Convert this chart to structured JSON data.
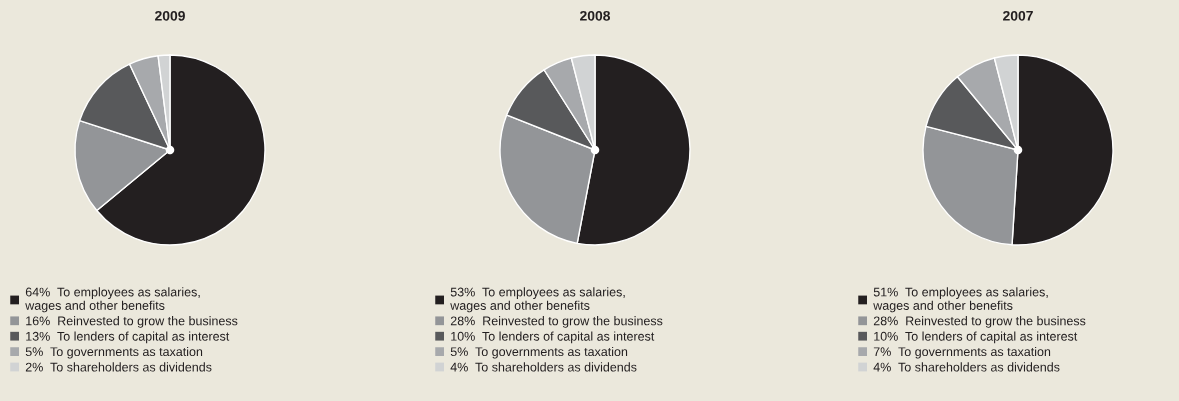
{
  "chart_data": [
    {
      "type": "pie",
      "title": "2009",
      "categories": [
        "To employees as salaries,\nwages and other benefits",
        "Reinvested to grow the business",
        "To lenders of capital as interest",
        "To governments as taxation",
        "To shareholders as dividends"
      ],
      "values": [
        64,
        16,
        13,
        5,
        2
      ],
      "value_labels": [
        "64%",
        "16%",
        "13%",
        "5%",
        "2%"
      ],
      "colors": [
        "#231f20",
        "#939598",
        "#58595b",
        "#a7a9ac",
        "#d1d3d4"
      ],
      "legend": "bottom"
    },
    {
      "type": "pie",
      "title": "2008",
      "categories": [
        "To employees as salaries,\nwages and other benefits",
        "Reinvested to grow the business",
        "To lenders of capital as interest",
        "To governments as taxation",
        "To shareholders as dividends"
      ],
      "values": [
        53,
        28,
        10,
        5,
        4
      ],
      "value_labels": [
        "53%",
        "28%",
        "10%",
        "5%",
        "4%"
      ],
      "colors": [
        "#231f20",
        "#939598",
        "#58595b",
        "#a7a9ac",
        "#d1d3d4"
      ],
      "legend": "bottom"
    },
    {
      "type": "pie",
      "title": "2007",
      "categories": [
        "To employees as salaries,\nwages and other benefits",
        "Reinvested to grow the business",
        "To lenders of capital as interest",
        "To governments as taxation",
        "To shareholders as dividends"
      ],
      "values": [
        51,
        28,
        10,
        7,
        4
      ],
      "value_labels": [
        "51%",
        "28%",
        "10%",
        "7%",
        "4%"
      ],
      "colors": [
        "#231f20",
        "#939598",
        "#58595b",
        "#a7a9ac",
        "#d1d3d4"
      ],
      "legend": "bottom"
    }
  ]
}
